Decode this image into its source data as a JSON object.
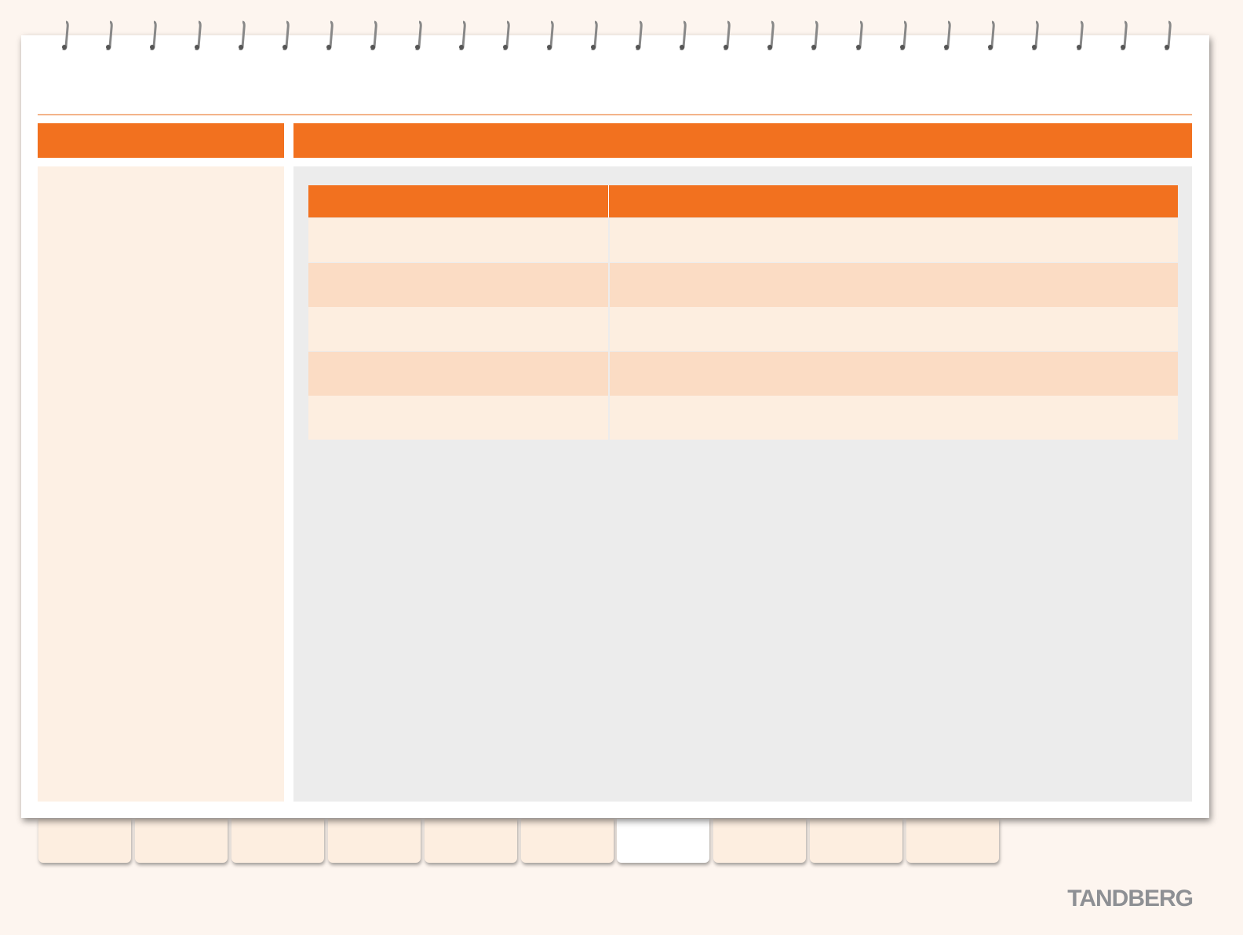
{
  "brand": "TANDBERG"
}
